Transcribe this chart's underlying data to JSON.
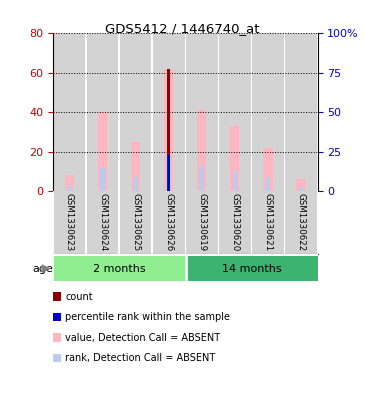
{
  "title": "GDS5412 / 1446740_at",
  "samples": [
    "GSM1330623",
    "GSM1330624",
    "GSM1330625",
    "GSM1330626",
    "GSM1330619",
    "GSM1330620",
    "GSM1330621",
    "GSM1330622"
  ],
  "groups": [
    {
      "name": "2 months",
      "indices": [
        0,
        1,
        2,
        3
      ],
      "color": "#90EE90"
    },
    {
      "name": "14 months",
      "indices": [
        4,
        5,
        6,
        7
      ],
      "color": "#3CB371"
    }
  ],
  "pink_bar_values": [
    8,
    40,
    25,
    62,
    41,
    33,
    22,
    6
  ],
  "light_blue_bar_values": [
    3.5,
    15,
    9,
    23,
    16,
    13,
    9,
    2.5
  ],
  "dark_red_bar_idx": 3,
  "dark_red_value": 62,
  "dark_blue_value": 23,
  "ylim_left": [
    0,
    80
  ],
  "ylim_right": [
    0,
    100
  ],
  "left_ticks": [
    0,
    20,
    40,
    60,
    80
  ],
  "right_ticks": [
    0,
    25,
    50,
    75,
    100
  ],
  "right_tick_labels": [
    "0",
    "25",
    "50",
    "75",
    "100%"
  ],
  "left_tick_color": "#CC0000",
  "right_tick_color": "#0000CC",
  "bar_bg_color": "#D3D3D3",
  "pink_color": "#FFB6C1",
  "light_blue_color": "#BBCCEE",
  "dark_red_color": "#8B0000",
  "dark_blue_color": "#0000CC",
  "legend_items": [
    {
      "color": "#8B0000",
      "label": "count"
    },
    {
      "color": "#0000CC",
      "label": "percentile rank within the sample"
    },
    {
      "color": "#FFB6C1",
      "label": "value, Detection Call = ABSENT"
    },
    {
      "color": "#BBCCEE",
      "label": "rank, Detection Call = ABSENT"
    }
  ]
}
